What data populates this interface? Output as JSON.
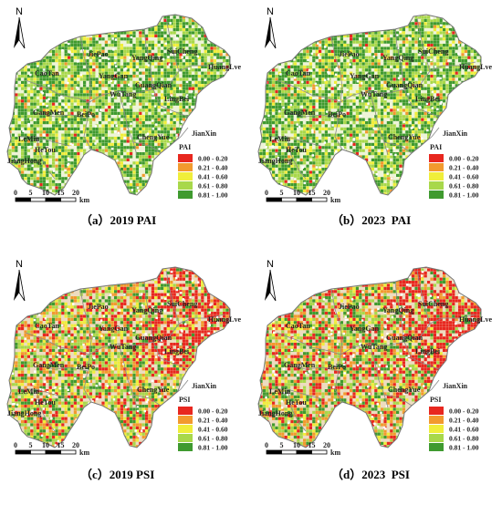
{
  "north_label": "N",
  "scale": {
    "ticks": [
      "0",
      "5",
      "10",
      "15",
      "20"
    ],
    "unit": "km"
  },
  "places": [
    "JiePao",
    "YangQing",
    "SuiCheng",
    "HuangLve",
    "CaoTan",
    "YangGan",
    "GuangQian",
    "WuTang",
    "LingBei",
    "GangMen",
    "BeiPo",
    "JianXin",
    "LeMin",
    "HeTou",
    "ChengYue",
    "JiangHong"
  ],
  "legend": {
    "classes": [
      {
        "label": "0.00 - 0.20",
        "color": "#e8271f"
      },
      {
        "label": "0.21 - 0.40",
        "color": "#f29a2e"
      },
      {
        "label": "0.41 - 0.60",
        "color": "#f0ee3a"
      },
      {
        "label": "0.61 - 0.80",
        "color": "#a8d84a"
      },
      {
        "label": "0.81 - 1.00",
        "color": "#3f9a2f"
      }
    ]
  },
  "panels": [
    {
      "id": "a",
      "caption": "（a）2019 PAI",
      "legend_title": "PAI",
      "index": "PAI",
      "year": "2019"
    },
    {
      "id": "b",
      "caption": "（b）2023  PAI",
      "legend_title": "PAI",
      "index": "PAI",
      "year": "2023"
    },
    {
      "id": "c",
      "caption": "（c）2019 PSI",
      "legend_title": "PSI",
      "index": "PSI",
      "year": "2019"
    },
    {
      "id": "d",
      "caption": "（d）2023  PSI",
      "legend_title": "PSI",
      "index": "PSI",
      "year": "2023"
    }
  ]
}
